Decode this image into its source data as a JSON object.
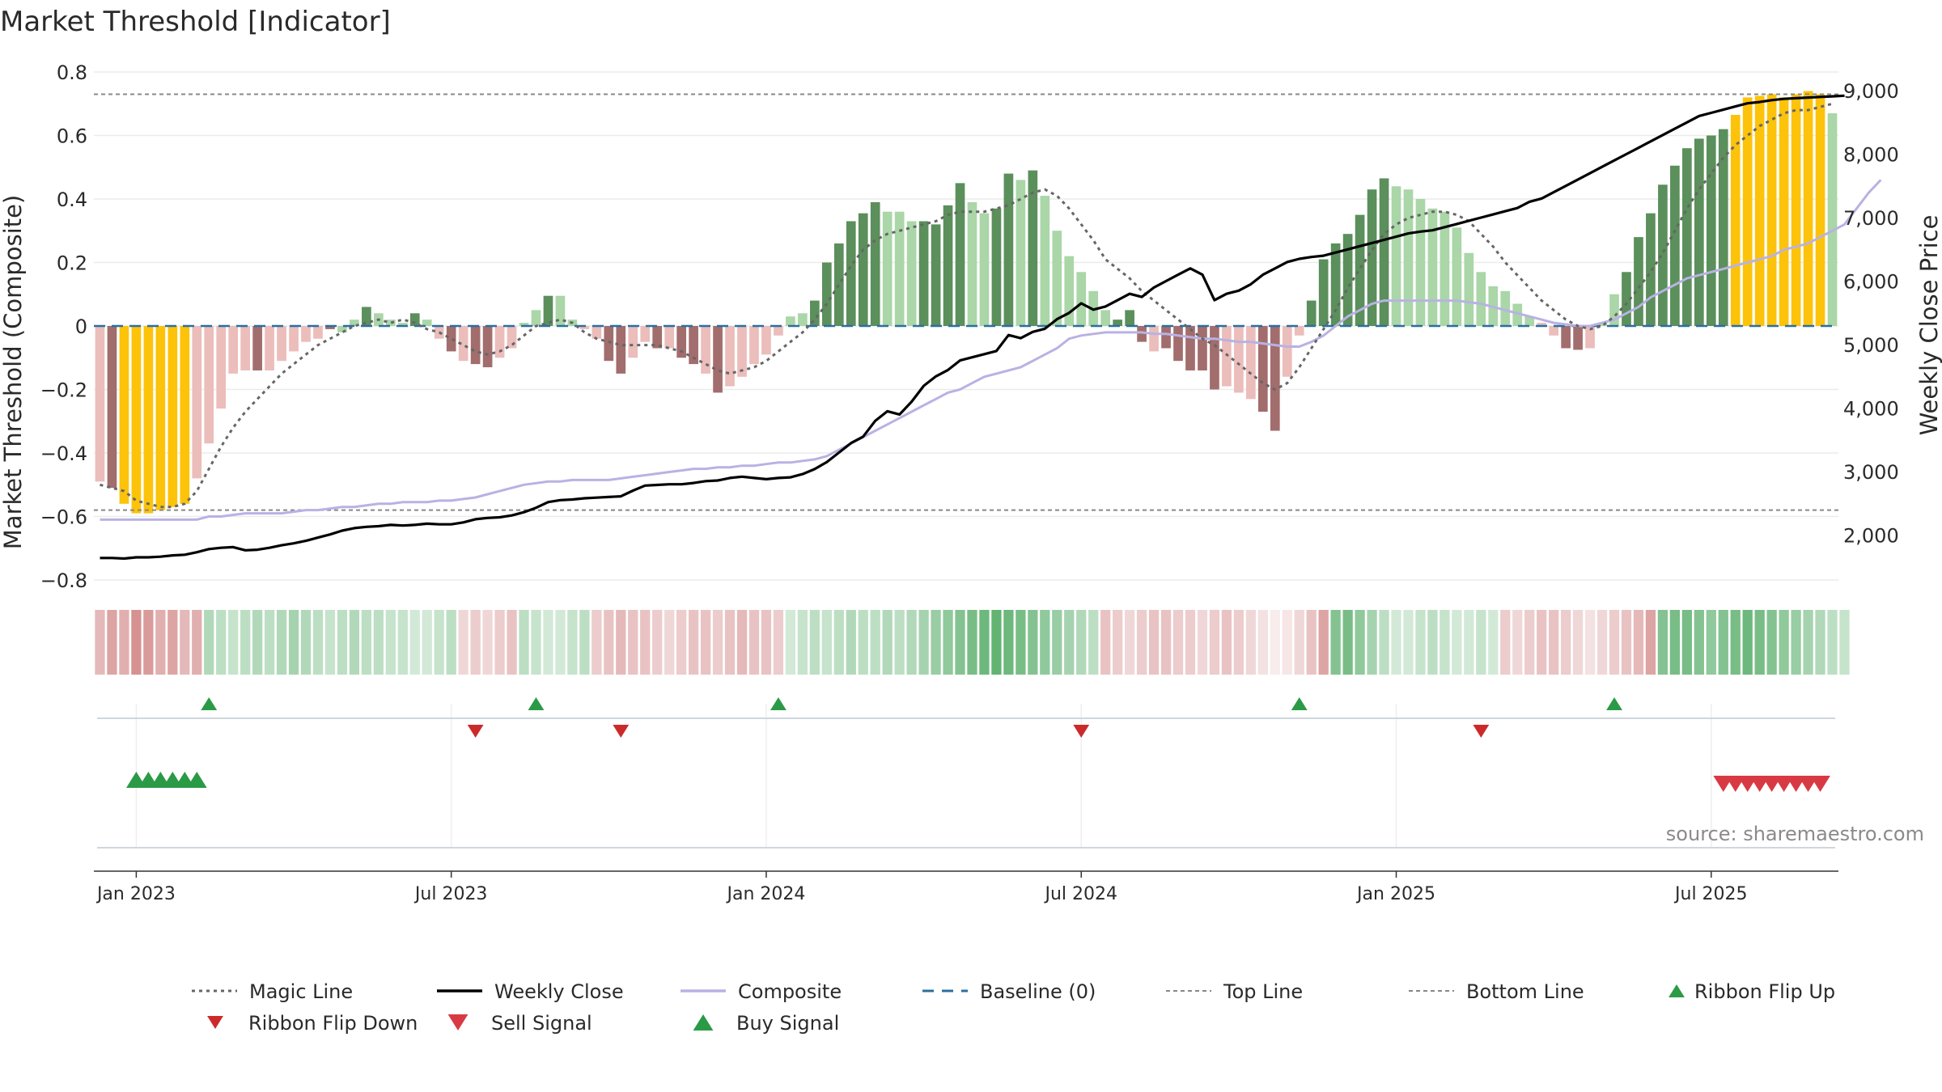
{
  "title": "Market Threshold [Indicator]",
  "source": "source: sharemaestro.com",
  "colors": {
    "dark_green": "#5b8f5b",
    "light_green": "#aad6a8",
    "dark_red": "#a26d6d",
    "light_red": "#ebbdbb",
    "gold": "#fcc30a",
    "magic_line": "#666666",
    "weekly_close": "#000000",
    "composite": "#b8b2e3",
    "baseline": "#2a6fa0",
    "threshold_lines": "#888888",
    "buy": "#2b9a46",
    "sell": "#d83a44",
    "flip_down": "#cc2a2a",
    "grid": "#ececec"
  },
  "chart_data": {
    "type": "bar",
    "title": "Market Threshold [Indicator]",
    "y_left_label": "Market Threshold (Composite)",
    "y_right_label": "Weekly Close Price",
    "y_left_range": [
      -0.8,
      0.8
    ],
    "y_left_ticks": [
      {
        "v": 0.8,
        "label": "0.8"
      },
      {
        "v": 0.6,
        "label": "0.6"
      },
      {
        "v": 0.4,
        "label": "0.4"
      },
      {
        "v": 0.2,
        "label": "0.2"
      },
      {
        "v": 0,
        "label": "0"
      },
      {
        "v": -0.2,
        "label": "−0.2"
      },
      {
        "v": -0.4,
        "label": "−0.4"
      },
      {
        "v": -0.6,
        "label": "−0.6"
      },
      {
        "v": -0.8,
        "label": "−0.8"
      }
    ],
    "y_right_ticks": [
      {
        "v": 9000,
        "label": "9,000"
      },
      {
        "v": 8000,
        "label": "8,000"
      },
      {
        "v": 7000,
        "label": "7,000"
      },
      {
        "v": 6000,
        "label": "6,000"
      },
      {
        "v": 5000,
        "label": "5,000"
      },
      {
        "v": 4000,
        "label": "4,000"
      },
      {
        "v": 3000,
        "label": "3,000"
      },
      {
        "v": 2000,
        "label": "2,000"
      }
    ],
    "x_ticks": [
      {
        "week": 3,
        "label": "Jan 2023"
      },
      {
        "week": 29,
        "label": "Jul 2023"
      },
      {
        "week": 55,
        "label": "Jan 2024"
      },
      {
        "week": 81,
        "label": "Jul 2024"
      },
      {
        "week": 107,
        "label": "Jan 2025"
      },
      {
        "week": 133,
        "label": "Jul 2025"
      }
    ],
    "top_line": 0.73,
    "bottom_line": -0.58,
    "bars": [
      -0.49,
      -0.51,
      -0.56,
      -0.59,
      -0.59,
      -0.58,
      -0.57,
      -0.56,
      -0.48,
      -0.37,
      -0.26,
      -0.15,
      -0.14,
      -0.14,
      -0.14,
      -0.11,
      -0.08,
      -0.05,
      -0.04,
      -0.01,
      -0.02,
      0.02,
      0.06,
      0.04,
      0.02,
      0.01,
      0.04,
      0.02,
      -0.04,
      -0.08,
      -0.11,
      -0.12,
      -0.13,
      -0.1,
      -0.07,
      0.01,
      0.05,
      0.095,
      0.095,
      0.02,
      -0.01,
      -0.04,
      -0.11,
      -0.15,
      -0.1,
      -0.05,
      -0.07,
      -0.07,
      -0.1,
      -0.12,
      -0.15,
      -0.21,
      -0.19,
      -0.16,
      -0.12,
      -0.09,
      -0.03,
      0.03,
      0.04,
      0.08,
      0.2,
      0.26,
      0.33,
      0.355,
      0.39,
      0.36,
      0.36,
      0.33,
      0.33,
      0.32,
      0.38,
      0.45,
      0.39,
      0.355,
      0.37,
      0.48,
      0.46,
      0.49,
      0.41,
      0.3,
      0.22,
      0.17,
      0.11,
      0.05,
      0.02,
      0.05,
      -0.05,
      -0.08,
      -0.07,
      -0.11,
      -0.14,
      -0.14,
      -0.2,
      -0.19,
      -0.21,
      -0.23,
      -0.27,
      -0.33,
      -0.16,
      -0.03,
      0.08,
      0.21,
      0.26,
      0.29,
      0.35,
      0.43,
      0.465,
      0.44,
      0.43,
      0.4,
      0.37,
      0.36,
      0.31,
      0.23,
      0.17,
      0.125,
      0.11,
      0.07,
      0.03,
      0.01,
      -0.03,
      -0.07,
      -0.075,
      -0.07,
      0.01,
      0.1,
      0.17,
      0.28,
      0.355,
      0.445,
      0.505,
      0.56,
      0.59,
      0.6,
      0.62,
      0.665,
      0.72,
      0.725,
      0.73,
      0.72,
      0.73,
      0.74,
      0.73,
      0.67
    ],
    "bar_colors": [
      "lr",
      "dr",
      "g",
      "g",
      "g",
      "g",
      "g",
      "g",
      "lr",
      "lr",
      "lr",
      "lr",
      "lr",
      "dr",
      "lr",
      "lr",
      "lr",
      "lr",
      "lr",
      "dr",
      "lg",
      "lg",
      "dg",
      "lg",
      "lg",
      "lg",
      "dg",
      "lg",
      "lr",
      "dr",
      "lr",
      "dr",
      "dr",
      "lr",
      "lr",
      "lg",
      "lg",
      "dg",
      "lg",
      "lg",
      "lr",
      "lr",
      "dr",
      "dr",
      "lr",
      "lr",
      "dr",
      "lr",
      "dr",
      "dr",
      "lr",
      "dr",
      "lr",
      "lr",
      "lr",
      "lr",
      "lr",
      "lg",
      "lg",
      "dg",
      "dg",
      "dg",
      "dg",
      "dg",
      "dg",
      "lg",
      "lg",
      "lg",
      "dg",
      "dg",
      "dg",
      "dg",
      "lg",
      "lg",
      "dg",
      "dg",
      "lg",
      "dg",
      "lg",
      "lg",
      "lg",
      "lg",
      "lg",
      "lg",
      "dg",
      "dg",
      "dr",
      "lr",
      "dr",
      "dr",
      "dr",
      "dr",
      "dr",
      "lr",
      "lr",
      "lr",
      "dr",
      "dr",
      "lr",
      "lr",
      "dg",
      "dg",
      "dg",
      "dg",
      "dg",
      "dg",
      "dg",
      "lg",
      "lg",
      "lg",
      "lg",
      "lg",
      "lg",
      "lg",
      "lg",
      "lg",
      "lg",
      "lg",
      "lg",
      "lr",
      "lr",
      "dr",
      "dr",
      "lr",
      "lg",
      "lg",
      "dg",
      "dg",
      "dg",
      "dg",
      "dg",
      "dg",
      "dg",
      "dg",
      "dg",
      "g",
      "g",
      "g",
      "g",
      "g",
      "g",
      "g",
      "g",
      "lg"
    ],
    "magic_line": [
      -0.5,
      -0.51,
      -0.52,
      -0.55,
      -0.56,
      -0.57,
      -0.57,
      -0.56,
      -0.52,
      -0.45,
      -0.38,
      -0.32,
      -0.27,
      -0.23,
      -0.19,
      -0.15,
      -0.12,
      -0.09,
      -0.06,
      -0.04,
      -0.02,
      0.0,
      0.01,
      0.02,
      0.01,
      0.02,
      0.01,
      -0.01,
      -0.02,
      -0.04,
      -0.06,
      -0.08,
      -0.09,
      -0.08,
      -0.06,
      -0.03,
      0.0,
      0.01,
      0.02,
      0.01,
      -0.02,
      -0.04,
      -0.05,
      -0.06,
      -0.06,
      -0.06,
      -0.06,
      -0.07,
      -0.08,
      -0.1,
      -0.12,
      -0.14,
      -0.15,
      -0.14,
      -0.13,
      -0.11,
      -0.08,
      -0.05,
      -0.02,
      0.02,
      0.07,
      0.13,
      0.19,
      0.24,
      0.27,
      0.29,
      0.3,
      0.31,
      0.32,
      0.33,
      0.35,
      0.36,
      0.36,
      0.36,
      0.37,
      0.38,
      0.4,
      0.42,
      0.43,
      0.41,
      0.37,
      0.32,
      0.27,
      0.21,
      0.18,
      0.15,
      0.11,
      0.08,
      0.05,
      0.02,
      -0.01,
      -0.04,
      -0.06,
      -0.09,
      -0.12,
      -0.15,
      -0.18,
      -0.2,
      -0.18,
      -0.13,
      -0.07,
      -0.01,
      0.05,
      0.12,
      0.18,
      0.24,
      0.29,
      0.32,
      0.34,
      0.35,
      0.36,
      0.36,
      0.35,
      0.33,
      0.29,
      0.25,
      0.2,
      0.16,
      0.12,
      0.08,
      0.05,
      0.02,
      0.0,
      -0.01,
      0.0,
      0.03,
      0.07,
      0.12,
      0.17,
      0.23,
      0.3,
      0.37,
      0.43,
      0.48,
      0.53,
      0.57,
      0.6,
      0.63,
      0.65,
      0.67,
      0.68,
      0.68,
      0.69,
      0.7
    ],
    "composite": [
      -0.61,
      -0.61,
      -0.61,
      -0.61,
      -0.61,
      -0.61,
      -0.61,
      -0.61,
      -0.61,
      -0.6,
      -0.6,
      -0.595,
      -0.59,
      -0.59,
      -0.59,
      -0.59,
      -0.585,
      -0.58,
      -0.58,
      -0.575,
      -0.57,
      -0.57,
      -0.565,
      -0.56,
      -0.56,
      -0.555,
      -0.555,
      -0.555,
      -0.55,
      -0.55,
      -0.545,
      -0.54,
      -0.53,
      -0.52,
      -0.51,
      -0.5,
      -0.495,
      -0.49,
      -0.49,
      -0.485,
      -0.485,
      -0.485,
      -0.485,
      -0.48,
      -0.475,
      -0.47,
      -0.465,
      -0.46,
      -0.455,
      -0.45,
      -0.45,
      -0.445,
      -0.445,
      -0.44,
      -0.44,
      -0.435,
      -0.43,
      -0.43,
      -0.425,
      -0.42,
      -0.41,
      -0.39,
      -0.37,
      -0.35,
      -0.33,
      -0.31,
      -0.29,
      -0.27,
      -0.25,
      -0.23,
      -0.21,
      -0.2,
      -0.18,
      -0.16,
      -0.15,
      -0.14,
      -0.13,
      -0.11,
      -0.09,
      -0.07,
      -0.04,
      -0.03,
      -0.025,
      -0.02,
      -0.02,
      -0.02,
      -0.02,
      -0.025,
      -0.025,
      -0.03,
      -0.035,
      -0.04,
      -0.04,
      -0.045,
      -0.05,
      -0.05,
      -0.055,
      -0.06,
      -0.065,
      -0.065,
      -0.05,
      -0.03,
      0.0,
      0.03,
      0.05,
      0.07,
      0.08,
      0.08,
      0.08,
      0.08,
      0.08,
      0.08,
      0.08,
      0.075,
      0.07,
      0.06,
      0.05,
      0.04,
      0.03,
      0.02,
      0.01,
      0.005,
      0.0,
      0.0,
      0.01,
      0.02,
      0.04,
      0.06,
      0.09,
      0.11,
      0.13,
      0.15,
      0.16,
      0.17,
      0.18,
      0.19,
      0.2,
      0.21,
      0.22,
      0.24,
      0.25,
      0.26,
      0.28,
      0.3,
      0.32,
      0.37,
      0.42,
      0.46
    ],
    "weekly_close": [
      1640,
      1640,
      1630,
      1650,
      1650,
      1660,
      1680,
      1690,
      1730,
      1780,
      1800,
      1810,
      1760,
      1770,
      1800,
      1840,
      1870,
      1910,
      1960,
      2010,
      2070,
      2110,
      2130,
      2140,
      2160,
      2150,
      2160,
      2180,
      2170,
      2170,
      2200,
      2250,
      2270,
      2280,
      2310,
      2360,
      2430,
      2520,
      2550,
      2560,
      2580,
      2590,
      2600,
      2610,
      2700,
      2780,
      2790,
      2800,
      2800,
      2820,
      2850,
      2860,
      2900,
      2920,
      2900,
      2880,
      2900,
      2910,
      2960,
      3040,
      3150,
      3300,
      3450,
      3550,
      3800,
      3950,
      3900,
      4100,
      4350,
      4500,
      4600,
      4750,
      4800,
      4850,
      4900,
      5150,
      5100,
      5200,
      5250,
      5400,
      5500,
      5650,
      5550,
      5600,
      5700,
      5800,
      5750,
      5900,
      6000,
      6100,
      6200,
      6100,
      5700,
      5800,
      5850,
      5950,
      6100,
      6200,
      6300,
      6350,
      6380,
      6400,
      6450,
      6500,
      6550,
      6600,
      6650,
      6700,
      6750,
      6780,
      6800,
      6850,
      6900,
      6950,
      7000,
      7050,
      7100,
      7150,
      7250,
      7300,
      7400,
      7500,
      7600,
      7700,
      7800,
      7900,
      8000,
      8100,
      8200,
      8300,
      8400,
      8500,
      8600,
      8650,
      8700,
      8750,
      8800,
      8820,
      8850,
      8870,
      8880,
      8890,
      8900,
      8910,
      8920
    ],
    "ribbon_shades": [
      0.35,
      0.45,
      0.4,
      0.55,
      0.5,
      0.4,
      0.45,
      0.35,
      0.4,
      0.35,
      0.3,
      0.25,
      0.3,
      0.35,
      0.3,
      0.35,
      0.4,
      0.35,
      0.3,
      0.25,
      0.3,
      0.35,
      0.3,
      0.3,
      0.25,
      0.25,
      0.2,
      0.2,
      0.25,
      0.3,
      0.2,
      0.25,
      0.2,
      0.25,
      0.3,
      0.3,
      0.25,
      0.2,
      0.2,
      0.25,
      0.3,
      0.25,
      0.3,
      0.35,
      0.3,
      0.3,
      0.25,
      0.2,
      0.25,
      0.3,
      0.3,
      0.25,
      0.3,
      0.35,
      0.3,
      0.3,
      0.25,
      0.2,
      0.25,
      0.3,
      0.25,
      0.3,
      0.35,
      0.3,
      0.3,
      0.35,
      0.3,
      0.35,
      0.4,
      0.45,
      0.5,
      0.55,
      0.6,
      0.65,
      0.7,
      0.65,
      0.6,
      0.55,
      0.5,
      0.45,
      0.4,
      0.35,
      0.3,
      0.3,
      0.25,
      0.2,
      0.25,
      0.3,
      0.3,
      0.25,
      0.25,
      0.2,
      0.25,
      0.3,
      0.25,
      0.2,
      0.15,
      0.1,
      0.12,
      0.2,
      0.3,
      0.45,
      0.55,
      0.6,
      0.5,
      0.4,
      0.3,
      0.2,
      0.2,
      0.25,
      0.3,
      0.25,
      0.2,
      0.2,
      0.25,
      0.2,
      0.25,
      0.2,
      0.25,
      0.3,
      0.3,
      0.25,
      0.2,
      0.15,
      0.2,
      0.25,
      0.3,
      0.35,
      0.45,
      0.55,
      0.6,
      0.6,
      0.55,
      0.5,
      0.55,
      0.6,
      0.65,
      0.6,
      0.55,
      0.5,
      0.45,
      0.4,
      0.35,
      0.3,
      0.25
    ],
    "ribbon_sign": [
      -1,
      -1,
      -1,
      -1,
      -1,
      -1,
      -1,
      -1,
      -1,
      1,
      1,
      1,
      1,
      1,
      1,
      1,
      1,
      1,
      1,
      1,
      1,
      1,
      1,
      1,
      1,
      1,
      1,
      1,
      1,
      1,
      -1,
      -1,
      -1,
      -1,
      -1,
      1,
      1,
      1,
      1,
      1,
      1,
      -1,
      -1,
      -1,
      -1,
      -1,
      -1,
      -1,
      -1,
      -1,
      -1,
      -1,
      -1,
      -1,
      -1,
      -1,
      -1,
      1,
      1,
      1,
      1,
      1,
      1,
      1,
      1,
      1,
      1,
      1,
      1,
      1,
      1,
      1,
      1,
      1,
      1,
      1,
      1,
      1,
      1,
      1,
      1,
      1,
      1,
      -1,
      -1,
      -1,
      -1,
      -1,
      -1,
      -1,
      -1,
      -1,
      -1,
      -1,
      -1,
      -1,
      -1,
      -1,
      -1,
      -1,
      -1,
      -1,
      1,
      1,
      1,
      1,
      1,
      1,
      1,
      1,
      1,
      1,
      1,
      1,
      1,
      1,
      -1,
      -1,
      -1,
      -1,
      -1,
      -1,
      -1,
      -1,
      -1,
      -1,
      -1,
      -1,
      -1,
      1,
      1,
      1,
      1,
      1,
      1,
      1,
      1,
      1,
      1,
      1,
      1,
      1,
      1,
      1,
      1,
      1,
      1,
      1,
      1,
      1,
      1,
      1
    ],
    "ribbon_flip_up": [
      9,
      36,
      56,
      99,
      125
    ],
    "ribbon_flip_down": [
      31,
      43,
      81,
      114
    ],
    "buy_signals": [
      3,
      4,
      5,
      6,
      7,
      8
    ],
    "sell_signals": [
      134,
      135,
      136,
      137,
      138,
      139,
      140,
      141,
      142
    ],
    "legend": [
      {
        "key": "magic",
        "label": "Magic Line"
      },
      {
        "key": "close",
        "label": "Weekly Close"
      },
      {
        "key": "composite",
        "label": "Composite"
      },
      {
        "key": "baseline",
        "label": "Baseline (0)"
      },
      {
        "key": "top",
        "label": "Top Line"
      },
      {
        "key": "bottom",
        "label": "Bottom Line"
      },
      {
        "key": "flip_up",
        "label": "Ribbon Flip Up"
      },
      {
        "key": "flip_down",
        "label": "Ribbon Flip Down"
      },
      {
        "key": "sell",
        "label": "Sell Signal"
      },
      {
        "key": "buy",
        "label": "Buy Signal"
      }
    ]
  }
}
